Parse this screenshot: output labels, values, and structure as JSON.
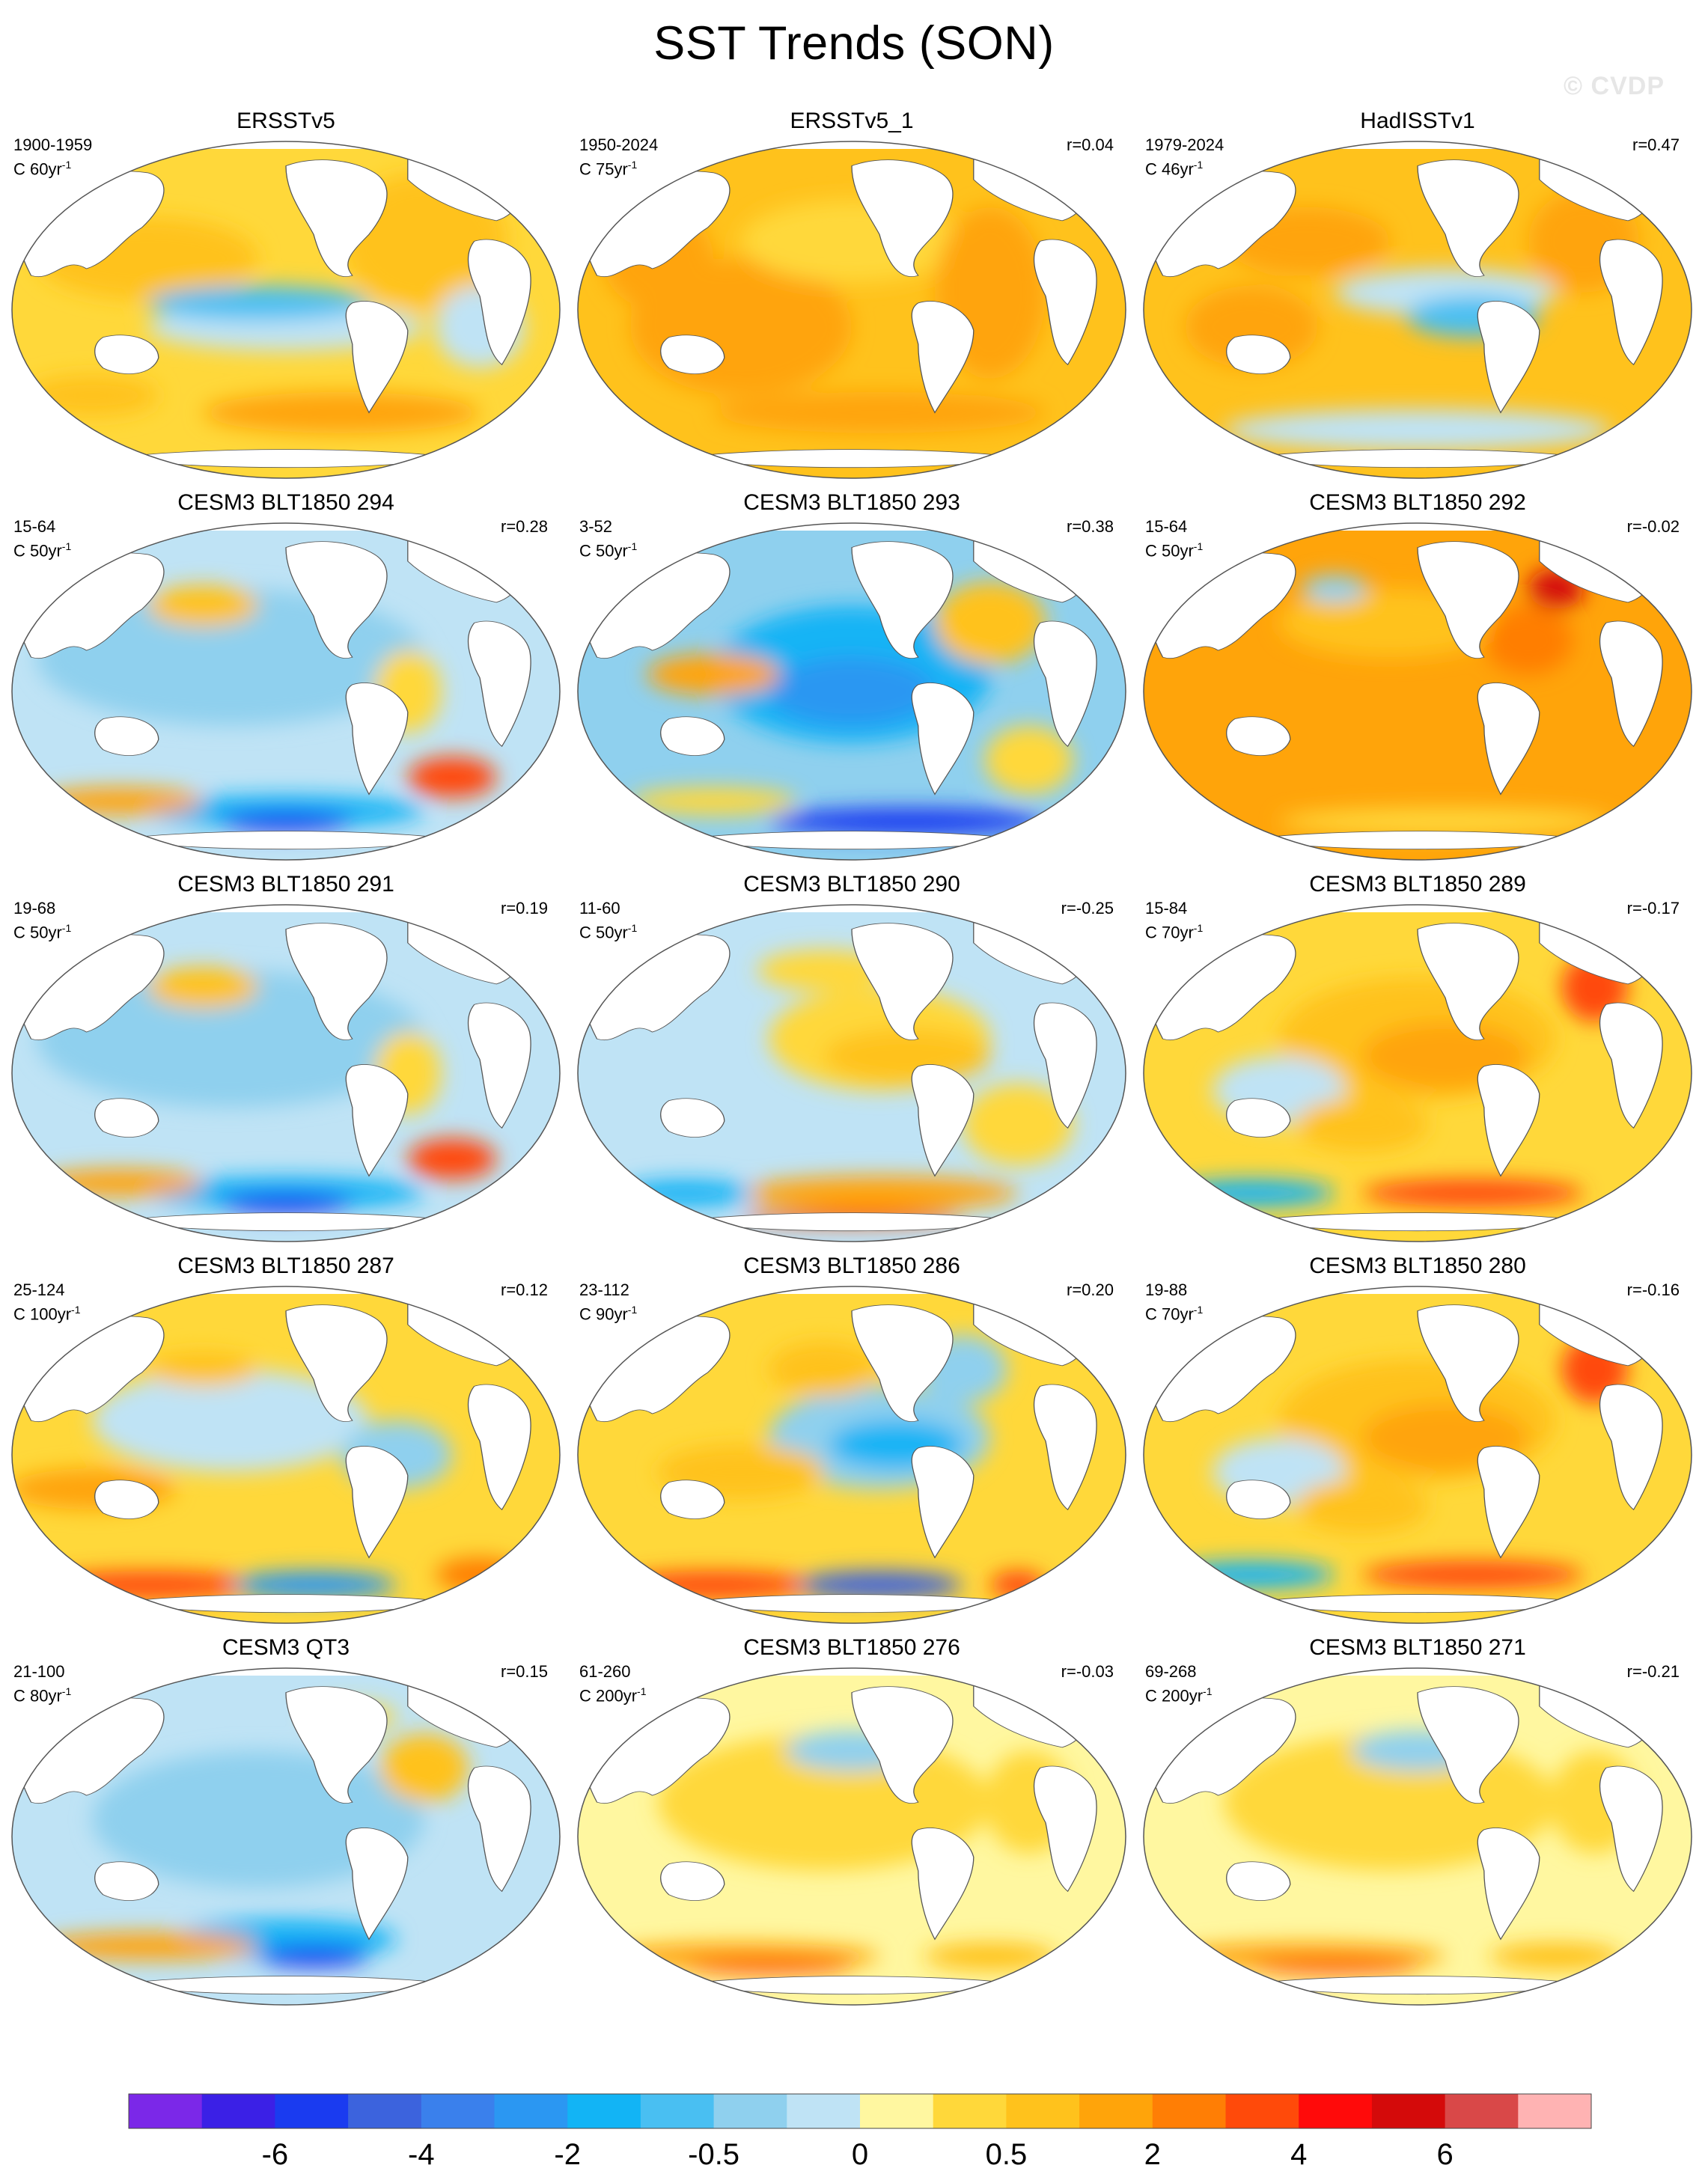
{
  "title": "SST Trends (SON)",
  "watermark": "© CVDP",
  "units_label": "C",
  "panels": [
    {
      "title": "ERSSTv5",
      "years": "1900-1959",
      "trend_len": "60",
      "corr": "",
      "pattern": "obs_mixed"
    },
    {
      "title": "ERSSTv5_1",
      "years": "1950-2024",
      "trend_len": "75",
      "corr": "r=0.04",
      "pattern": "obs_warm"
    },
    {
      "title": "HadISSTv1",
      "years": "1979-2024",
      "trend_len": "46",
      "corr": "r=0.47",
      "pattern": "obs_lanina"
    },
    {
      "title": "CESM3 BLT1850 294",
      "years": "15-64",
      "trend_len": "50",
      "corr": "r=0.28",
      "pattern": "cool"
    },
    {
      "title": "CESM3 BLT1850 293",
      "years": "3-52",
      "trend_len": "50",
      "corr": "r=0.38",
      "pattern": "cool_strong"
    },
    {
      "title": "CESM3 BLT1850 292",
      "years": "15-64",
      "trend_len": "50",
      "corr": "r=-0.02",
      "pattern": "warm_strong"
    },
    {
      "title": "CESM3 BLT1850 291",
      "years": "19-68",
      "trend_len": "50",
      "corr": "r=0.19",
      "pattern": "cool"
    },
    {
      "title": "CESM3 BLT1850 290",
      "years": "11-60",
      "trend_len": "50",
      "corr": "r=-0.25",
      "pattern": "mixed_warm_east"
    },
    {
      "title": "CESM3 BLT1850 289",
      "years": "15-84",
      "trend_len": "70",
      "corr": "r=-0.17",
      "pattern": "warm_east_so"
    },
    {
      "title": "CESM3 BLT1850 287",
      "years": "25-124",
      "trend_len": "100",
      "corr": "r=0.12",
      "pattern": "mixed_so"
    },
    {
      "title": "CESM3 BLT1850 286",
      "years": "23-112",
      "trend_len": "90",
      "corr": "r=0.20",
      "pattern": "cool_east"
    },
    {
      "title": "CESM3 BLT1850 280",
      "years": "19-88",
      "trend_len": "70",
      "corr": "r=-0.16",
      "pattern": "warm_east_so"
    },
    {
      "title": "CESM3 QT3",
      "years": "21-100",
      "trend_len": "80",
      "corr": "r=0.15",
      "pattern": "cool_qt"
    },
    {
      "title": "CESM3 BLT1850 276",
      "years": "61-260",
      "trend_len": "200",
      "corr": "r=-0.03",
      "pattern": "weak_warm"
    },
    {
      "title": "CESM3 BLT1850 271",
      "years": "69-268",
      "trend_len": "200",
      "corr": "r=-0.21",
      "pattern": "weak_warm"
    }
  ],
  "colorbar": {
    "colors": [
      "#7b28e8",
      "#3b20e6",
      "#1a3bf0",
      "#3c63dd",
      "#3a80ec",
      "#2b97f2",
      "#12b4f5",
      "#49bff2",
      "#8fd0ee",
      "#bfe3f5",
      "#fff7a0",
      "#ffd83a",
      "#ffc21c",
      "#ffa40a",
      "#ff7e05",
      "#ff4a0a",
      "#ff0a0a",
      "#d40a0a",
      "#d94848",
      "#ffb3b3"
    ],
    "tick_labels": [
      "-6",
      "-4",
      "-2",
      "-0.5",
      "0",
      "0.5",
      "2",
      "4",
      "6"
    ],
    "tick_boundaries": [
      2,
      4,
      6,
      8,
      10,
      12,
      14,
      16,
      18
    ]
  }
}
